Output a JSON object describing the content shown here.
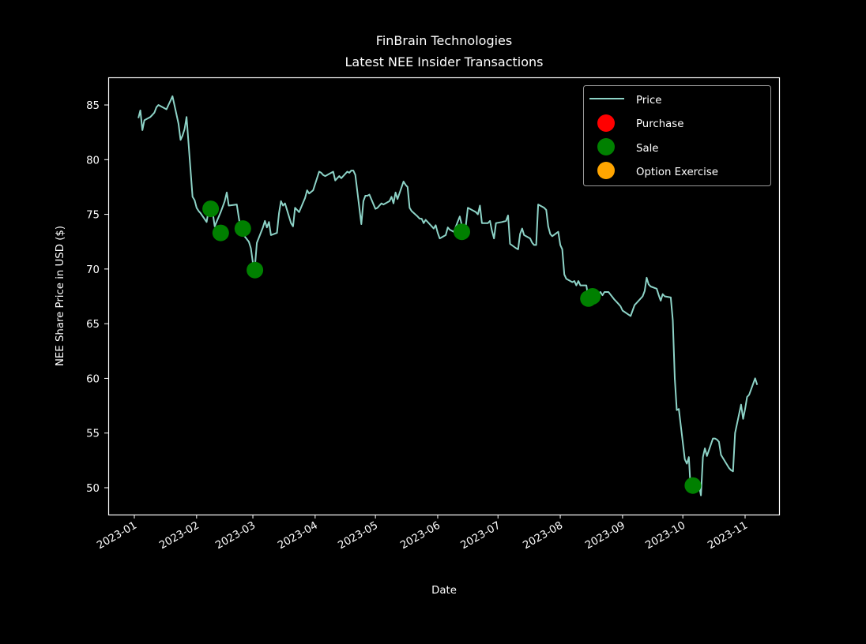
{
  "chart_data": {
    "type": "line",
    "title": "FinBrain Technologies",
    "subtitle": "Latest NEE Insider Transactions",
    "xlabel": "Date",
    "ylabel": "NEE Share Price in USD ($)",
    "ylim": [
      47.5,
      87.5
    ],
    "yticks": [
      50,
      55,
      60,
      65,
      70,
      75,
      80,
      85
    ],
    "xticks": [
      "2023-01",
      "2023-02",
      "2023-03",
      "2023-04",
      "2023-05",
      "2023-06",
      "2023-07",
      "2023-08",
      "2023-09",
      "2023-10",
      "2023-11"
    ],
    "grid": false,
    "legend_position": "upper right",
    "legend": [
      {
        "label": "Price",
        "type": "line",
        "color": "#8dd3c7"
      },
      {
        "label": "Purchase",
        "type": "marker",
        "color": "#ff0000"
      },
      {
        "label": "Sale",
        "type": "marker",
        "color": "#008000"
      },
      {
        "label": "Option Exercise",
        "type": "marker",
        "color": "#ffa500"
      }
    ],
    "series": [
      {
        "name": "Price",
        "color": "#8dd3c7",
        "points": [
          [
            "2023-01-03",
            83.8
          ],
          [
            "2023-01-04",
            84.5
          ],
          [
            "2023-01-05",
            82.7
          ],
          [
            "2023-01-06",
            83.6
          ],
          [
            "2023-01-09",
            83.9
          ],
          [
            "2023-01-10",
            84.1
          ],
          [
            "2023-01-11",
            84.3
          ],
          [
            "2023-01-12",
            84.8
          ],
          [
            "2023-01-13",
            85.0
          ],
          [
            "2023-01-17",
            84.6
          ],
          [
            "2023-01-18",
            85.0
          ],
          [
            "2023-01-19",
            85.4
          ],
          [
            "2023-01-20",
            85.8
          ],
          [
            "2023-01-23",
            83.3
          ],
          [
            "2023-01-24",
            81.8
          ],
          [
            "2023-01-25",
            82.2
          ],
          [
            "2023-01-26",
            82.8
          ],
          [
            "2023-01-27",
            83.9
          ],
          [
            "2023-01-30",
            76.6
          ],
          [
            "2023-01-31",
            76.3
          ],
          [
            "2023-02-01",
            75.6
          ],
          [
            "2023-02-02",
            75.3
          ],
          [
            "2023-02-03",
            75.1
          ],
          [
            "2023-02-06",
            74.3
          ],
          [
            "2023-02-07",
            75.4
          ],
          [
            "2023-02-08",
            74.9
          ],
          [
            "2023-02-09",
            75.2
          ],
          [
            "2023-02-10",
            73.9
          ],
          [
            "2023-02-13",
            75.2
          ],
          [
            "2023-02-14",
            75.7
          ],
          [
            "2023-02-15",
            76.2
          ],
          [
            "2023-02-16",
            77.0
          ],
          [
            "2023-02-17",
            75.8
          ],
          [
            "2023-02-21",
            75.9
          ],
          [
            "2023-02-22",
            74.7
          ],
          [
            "2023-02-23",
            73.6
          ],
          [
            "2023-02-24",
            73.2
          ],
          [
            "2023-02-27",
            72.5
          ],
          [
            "2023-02-28",
            71.9
          ],
          [
            "2023-03-01",
            70.6
          ],
          [
            "2023-03-02",
            70.2
          ],
          [
            "2023-03-03",
            72.4
          ],
          [
            "2023-03-06",
            73.8
          ],
          [
            "2023-03-07",
            74.4
          ],
          [
            "2023-03-08",
            73.8
          ],
          [
            "2023-03-09",
            74.3
          ],
          [
            "2023-03-10",
            73.1
          ],
          [
            "2023-03-13",
            73.3
          ],
          [
            "2023-03-14",
            75.1
          ],
          [
            "2023-03-15",
            76.2
          ],
          [
            "2023-03-16",
            75.8
          ],
          [
            "2023-03-17",
            76.0
          ],
          [
            "2023-03-20",
            74.2
          ],
          [
            "2023-03-21",
            73.9
          ],
          [
            "2023-03-22",
            75.6
          ],
          [
            "2023-03-23",
            75.4
          ],
          [
            "2023-03-24",
            75.2
          ],
          [
            "2023-03-27",
            76.5
          ],
          [
            "2023-03-28",
            77.2
          ],
          [
            "2023-03-29",
            76.9
          ],
          [
            "2023-03-31",
            77.2
          ],
          [
            "2023-04-03",
            78.9
          ],
          [
            "2023-04-04",
            78.8
          ],
          [
            "2023-04-05",
            78.6
          ],
          [
            "2023-04-06",
            78.5
          ],
          [
            "2023-04-10",
            78.9
          ],
          [
            "2023-04-11",
            78.1
          ],
          [
            "2023-04-12",
            78.3
          ],
          [
            "2023-04-13",
            78.5
          ],
          [
            "2023-04-14",
            78.3
          ],
          [
            "2023-04-17",
            78.9
          ],
          [
            "2023-04-18",
            78.8
          ],
          [
            "2023-04-19",
            79.0
          ],
          [
            "2023-04-20",
            79.0
          ],
          [
            "2023-04-21",
            78.6
          ],
          [
            "2023-04-24",
            74.1
          ],
          [
            "2023-04-25",
            76.2
          ],
          [
            "2023-04-26",
            76.7
          ],
          [
            "2023-04-27",
            76.7
          ],
          [
            "2023-04-28",
            76.8
          ],
          [
            "2023-05-01",
            75.5
          ],
          [
            "2023-05-02",
            75.6
          ],
          [
            "2023-05-03",
            75.8
          ],
          [
            "2023-05-04",
            76.0
          ],
          [
            "2023-05-05",
            75.9
          ],
          [
            "2023-05-08",
            76.2
          ],
          [
            "2023-05-09",
            76.6
          ],
          [
            "2023-05-10",
            76.0
          ],
          [
            "2023-05-11",
            77.0
          ],
          [
            "2023-05-12",
            76.4
          ],
          [
            "2023-05-15",
            78.0
          ],
          [
            "2023-05-16",
            77.7
          ],
          [
            "2023-05-17",
            77.5
          ],
          [
            "2023-05-18",
            75.6
          ],
          [
            "2023-05-19",
            75.3
          ],
          [
            "2023-05-22",
            74.8
          ],
          [
            "2023-05-23",
            74.6
          ],
          [
            "2023-05-24",
            74.6
          ],
          [
            "2023-05-25",
            74.2
          ],
          [
            "2023-05-26",
            74.5
          ],
          [
            "2023-05-30",
            73.7
          ],
          [
            "2023-05-31",
            74.0
          ],
          [
            "2023-06-01",
            73.3
          ],
          [
            "2023-06-02",
            72.8
          ],
          [
            "2023-06-05",
            73.1
          ],
          [
            "2023-06-06",
            73.8
          ],
          [
            "2023-06-07",
            73.6
          ],
          [
            "2023-06-08",
            73.5
          ],
          [
            "2023-06-09",
            73.4
          ],
          [
            "2023-06-12",
            74.8
          ],
          [
            "2023-06-13",
            74.0
          ],
          [
            "2023-06-14",
            73.8
          ],
          [
            "2023-06-15",
            74.0
          ],
          [
            "2023-06-16",
            75.6
          ],
          [
            "2023-06-20",
            75.2
          ],
          [
            "2023-06-21",
            75.0
          ],
          [
            "2023-06-22",
            75.8
          ],
          [
            "2023-06-23",
            74.2
          ],
          [
            "2023-06-26",
            74.2
          ],
          [
            "2023-06-27",
            74.4
          ],
          [
            "2023-06-28",
            73.5
          ],
          [
            "2023-06-29",
            72.8
          ],
          [
            "2023-06-30",
            74.2
          ],
          [
            "2023-07-03",
            74.3
          ],
          [
            "2023-07-05",
            74.4
          ],
          [
            "2023-07-06",
            74.9
          ],
          [
            "2023-07-07",
            72.3
          ],
          [
            "2023-07-10",
            71.9
          ],
          [
            "2023-07-11",
            71.8
          ],
          [
            "2023-07-12",
            73.2
          ],
          [
            "2023-07-13",
            73.7
          ],
          [
            "2023-07-14",
            73.1
          ],
          [
            "2023-07-17",
            72.8
          ],
          [
            "2023-07-18",
            72.4
          ],
          [
            "2023-07-19",
            72.2
          ],
          [
            "2023-07-20",
            72.2
          ],
          [
            "2023-07-21",
            75.9
          ],
          [
            "2023-07-24",
            75.6
          ],
          [
            "2023-07-25",
            75.4
          ],
          [
            "2023-07-26",
            73.9
          ],
          [
            "2023-07-27",
            73.2
          ],
          [
            "2023-07-28",
            73.0
          ],
          [
            "2023-07-31",
            73.4
          ],
          [
            "2023-08-01",
            72.2
          ],
          [
            "2023-08-02",
            71.8
          ],
          [
            "2023-08-03",
            69.5
          ],
          [
            "2023-08-04",
            69.1
          ],
          [
            "2023-08-07",
            68.8
          ],
          [
            "2023-08-08",
            68.9
          ],
          [
            "2023-08-09",
            68.5
          ],
          [
            "2023-08-10",
            68.9
          ],
          [
            "2023-08-11",
            68.5
          ],
          [
            "2023-08-14",
            68.5
          ],
          [
            "2023-08-15",
            67.3
          ],
          [
            "2023-08-16",
            67.6
          ],
          [
            "2023-08-17",
            67.5
          ],
          [
            "2023-08-18",
            67.1
          ],
          [
            "2023-08-21",
            67.9
          ],
          [
            "2023-08-22",
            67.6
          ],
          [
            "2023-08-23",
            67.9
          ],
          [
            "2023-08-24",
            67.9
          ],
          [
            "2023-08-25",
            67.9
          ],
          [
            "2023-08-28",
            67.2
          ],
          [
            "2023-08-29",
            67.0
          ],
          [
            "2023-08-30",
            66.8
          ],
          [
            "2023-08-31",
            66.6
          ],
          [
            "2023-09-01",
            66.2
          ],
          [
            "2023-09-05",
            65.7
          ],
          [
            "2023-09-06",
            66.2
          ],
          [
            "2023-09-07",
            66.7
          ],
          [
            "2023-09-08",
            66.9
          ],
          [
            "2023-09-11",
            67.5
          ],
          [
            "2023-09-12",
            68.0
          ],
          [
            "2023-09-13",
            69.2
          ],
          [
            "2023-09-14",
            68.6
          ],
          [
            "2023-09-15",
            68.4
          ],
          [
            "2023-09-18",
            68.2
          ],
          [
            "2023-09-19",
            67.6
          ],
          [
            "2023-09-20",
            67.1
          ],
          [
            "2023-09-21",
            67.7
          ],
          [
            "2023-09-22",
            67.5
          ],
          [
            "2023-09-25",
            67.4
          ],
          [
            "2023-09-26",
            65.3
          ],
          [
            "2023-09-27",
            60.0
          ],
          [
            "2023-09-28",
            57.1
          ],
          [
            "2023-09-29",
            57.2
          ],
          [
            "2023-10-02",
            52.6
          ],
          [
            "2023-10-03",
            52.2
          ],
          [
            "2023-10-04",
            52.8
          ],
          [
            "2023-10-05",
            49.6
          ],
          [
            "2023-10-06",
            50.2
          ],
          [
            "2023-10-09",
            50.3
          ],
          [
            "2023-10-10",
            49.3
          ],
          [
            "2023-10-11",
            52.8
          ],
          [
            "2023-10-12",
            53.6
          ],
          [
            "2023-10-13",
            52.9
          ],
          [
            "2023-10-16",
            54.5
          ],
          [
            "2023-10-17",
            54.5
          ],
          [
            "2023-10-18",
            54.4
          ],
          [
            "2023-10-19",
            54.2
          ],
          [
            "2023-10-20",
            53.0
          ],
          [
            "2023-10-23",
            52.1
          ],
          [
            "2023-10-24",
            51.8
          ],
          [
            "2023-10-25",
            51.6
          ],
          [
            "2023-10-26",
            51.5
          ],
          [
            "2023-10-27",
            55.0
          ],
          [
            "2023-10-30",
            57.6
          ],
          [
            "2023-10-31",
            56.3
          ],
          [
            "2023-11-01",
            57.2
          ],
          [
            "2023-11-02",
            58.3
          ],
          [
            "2023-11-03",
            58.5
          ],
          [
            "2023-11-06",
            60.0
          ],
          [
            "2023-11-07",
            59.4
          ]
        ]
      },
      {
        "name": "Sale",
        "color": "#008000",
        "points": [
          [
            "2023-02-08",
            75.5
          ],
          [
            "2023-02-13",
            73.3
          ],
          [
            "2023-02-24",
            73.7
          ],
          [
            "2023-03-02",
            69.9
          ],
          [
            "2023-06-13",
            73.4
          ],
          [
            "2023-08-15",
            67.3
          ],
          [
            "2023-08-17",
            67.5
          ],
          [
            "2023-10-06",
            50.2
          ]
        ]
      },
      {
        "name": "Purchase",
        "color": "#ff0000",
        "points": []
      },
      {
        "name": "Option Exercise",
        "color": "#ffa500",
        "points": []
      }
    ]
  }
}
